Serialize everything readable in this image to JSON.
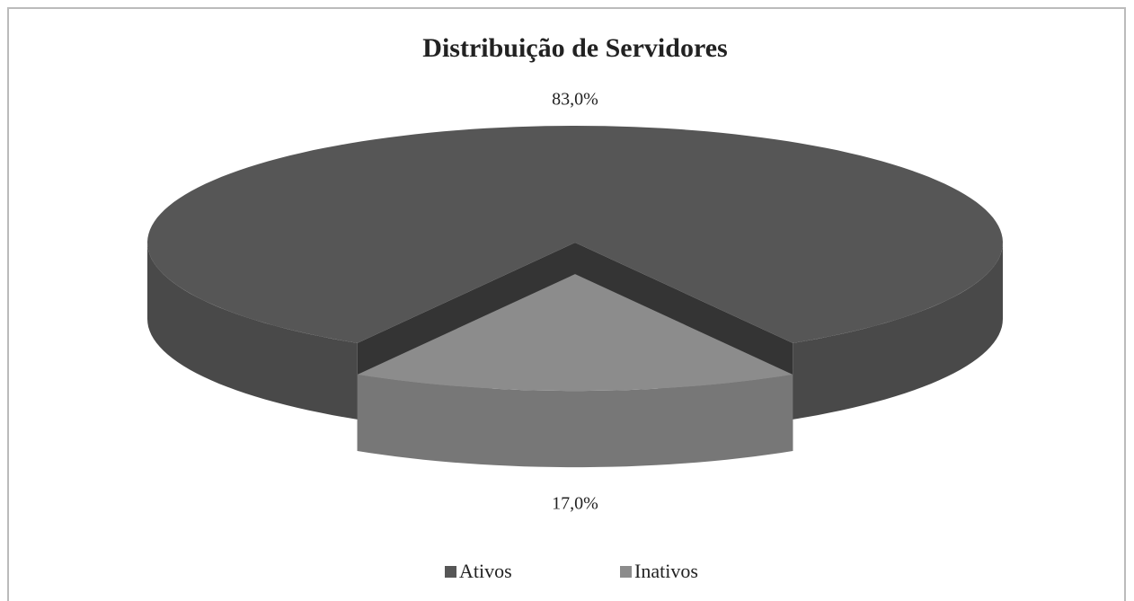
{
  "chart_data": {
    "type": "pie",
    "title": "Distribuição de Servidores",
    "categories": [
      "Ativos",
      "Inativos"
    ],
    "values": [
      83,
      17
    ],
    "value_labels": [
      "83,0%",
      "17,0%"
    ],
    "colors": [
      "#565656",
      "#8c8c8c"
    ],
    "legend": "bottom"
  }
}
